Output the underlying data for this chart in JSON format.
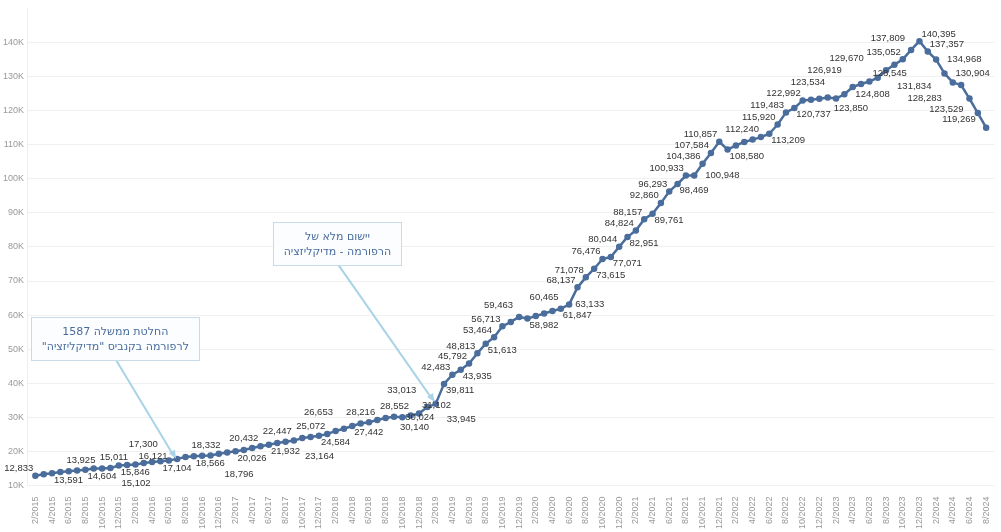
{
  "chart_data": {
    "type": "line",
    "x": [
      "2015-02",
      "2015-03",
      "2015-04",
      "2015-05",
      "2015-06",
      "2015-07",
      "2015-08",
      "2015-09",
      "2015-10",
      "2015-11",
      "2015-12",
      "2016-01",
      "2016-02",
      "2016-03",
      "2016-04",
      "2016-05",
      "2016-06",
      "2016-07",
      "2016-08",
      "2016-09",
      "2016-10",
      "2016-11",
      "2016-12",
      "2017-01",
      "2017-02",
      "2017-03",
      "2017-04",
      "2017-05",
      "2017-06",
      "2017-07",
      "2017-08",
      "2017-09",
      "2017-10",
      "2017-11",
      "2017-12",
      "2018-01",
      "2018-02",
      "2018-03",
      "2018-04",
      "2018-05",
      "2018-06",
      "2018-07",
      "2018-08",
      "2018-09",
      "2018-10",
      "2018-11",
      "2018-12",
      "2019-01",
      "2019-02",
      "2019-03",
      "2019-04",
      "2019-05",
      "2019-06",
      "2019-07",
      "2019-08",
      "2019-09",
      "2019-10",
      "2019-11",
      "2019-12",
      "2020-01",
      "2020-02",
      "2020-03",
      "2020-04",
      "2020-05",
      "2020-06",
      "2020-07",
      "2020-08",
      "2020-09",
      "2020-10",
      "2020-11",
      "2020-12",
      "2021-01",
      "2021-02",
      "2021-03",
      "2021-04",
      "2021-05",
      "2021-06",
      "2021-07",
      "2021-08",
      "2021-09",
      "2021-10",
      "2021-11",
      "2021-12",
      "2022-01",
      "2022-02",
      "2022-03",
      "2022-04",
      "2022-05",
      "2022-06",
      "2022-07",
      "2022-08",
      "2022-09",
      "2022-10",
      "2022-11",
      "2022-12",
      "2023-01",
      "2023-02",
      "2023-03",
      "2023-04",
      "2023-05",
      "2023-06",
      "2023-07",
      "2023-08",
      "2023-09",
      "2023-10",
      "2023-11",
      "2023-12",
      "2024-01",
      "2024-02",
      "2024-03",
      "2024-04",
      "2024-05",
      "2024-06",
      "2024-07",
      "2024-08"
    ],
    "series": [
      {
        "color": "#4a6d9c",
        "values": [
          12833,
          13300,
          13591,
          13925,
          14200,
          14400,
          14604,
          15011,
          15000,
          15102,
          15846,
          16000,
          16121,
          16600,
          16900,
          17104,
          17300,
          17800,
          18332,
          18566,
          18700,
          18796,
          19300,
          19700,
          20026,
          20432,
          21000,
          21500,
          21932,
          22447,
          22800,
          23164,
          23900,
          24200,
          24584,
          25072,
          26000,
          26653,
          27442,
          28216,
          28552,
          29200,
          29800,
          30140,
          30024,
          30500,
          31102,
          33013,
          33945,
          39811,
          42483,
          43935,
          45792,
          48813,
          51613,
          53464,
          56713,
          58000,
          59463,
          58982,
          59700,
          60465,
          61200,
          61847,
          63133,
          68137,
          71078,
          73615,
          76476,
          77071,
          80044,
          82951,
          84824,
          88157,
          89761,
          92860,
          96293,
          98469,
          100933,
          100948,
          104386,
          107584,
          110857,
          108580,
          109800,
          110800,
          111500,
          112240,
          113209,
          115920,
          119483,
          120737,
          122992,
          123200,
          123500,
          123850,
          123534,
          124808,
          126919,
          127800,
          128545,
          129670,
          131834,
          133500,
          135052,
          137809,
          140395,
          137357,
          134968,
          130904,
          128283,
          127500,
          123529,
          119269,
          115000
        ],
        "value_labels": [
          "12,833",
          null,
          "13,591",
          "13,925",
          null,
          null,
          "14,604",
          "15,011",
          null,
          "15,102",
          "15,846",
          null,
          "16,121",
          null,
          null,
          "17,104",
          "17,300",
          null,
          "18,332",
          "18,566",
          null,
          "18,796",
          null,
          null,
          "20,026",
          "20,432",
          null,
          null,
          "21,932",
          "22,447",
          null,
          "23,164",
          null,
          null,
          "24,584",
          "25,072",
          null,
          "26,653",
          "27,442",
          "28,216",
          "28,552",
          null,
          null,
          "30,140",
          "30,024",
          null,
          "31,102",
          "33,013",
          "33,945",
          "39,811",
          "42,483",
          "43,935",
          "45,792",
          "48,813",
          "51,613",
          "53,464",
          "56,713",
          null,
          "59,463",
          "58,982",
          null,
          "60,465",
          null,
          "61,847",
          "63,133",
          "68,137",
          "71,078",
          "73,615",
          "76,476",
          "77,071",
          "80,044",
          "82,951",
          "84,824",
          "88,157",
          "89,761",
          "92,860",
          "96,293",
          "98,469",
          "100,933",
          "100,948",
          "104,386",
          "107,584",
          "110,857",
          "108,580",
          null,
          null,
          null,
          "112,240",
          "113,209",
          "115,920",
          "119,483",
          "120,737",
          "122,992",
          null,
          null,
          "123,850",
          "123,534",
          "124,808",
          "126,919",
          null,
          "128,545",
          "129,670",
          "131,834",
          null,
          "135,052",
          "137,809",
          "140,395",
          "137,357",
          "134,968",
          "130,904",
          "128,283",
          null,
          "123,529",
          "119,269",
          null
        ]
      }
    ],
    "xlim": [
      "2015-01",
      "2024-09"
    ],
    "xticks": [
      {
        "value": "2015-02",
        "label": "2/2015"
      },
      {
        "value": "2015-04",
        "label": "4/2015"
      },
      {
        "value": "2015-06",
        "label": "6/2015"
      },
      {
        "value": "2015-08",
        "label": "8/2015"
      },
      {
        "value": "2015-10",
        "label": "10/2015"
      },
      {
        "value": "2015-12",
        "label": "12/2015"
      },
      {
        "value": "2016-02",
        "label": "2/2016"
      },
      {
        "value": "2016-04",
        "label": "4/2016"
      },
      {
        "value": "2016-06",
        "label": "6/2016"
      },
      {
        "value": "2016-08",
        "label": "8/2016"
      },
      {
        "value": "2016-10",
        "label": "10/2016"
      },
      {
        "value": "2016-12",
        "label": "12/2016"
      },
      {
        "value": "2017-02",
        "label": "2/2017"
      },
      {
        "value": "2017-04",
        "label": "4/2017"
      },
      {
        "value": "2017-06",
        "label": "6/2017"
      },
      {
        "value": "2017-08",
        "label": "8/2017"
      },
      {
        "value": "2017-10",
        "label": "10/2017"
      },
      {
        "value": "2017-12",
        "label": "12/2017"
      },
      {
        "value": "2018-02",
        "label": "2/2018"
      },
      {
        "value": "2018-04",
        "label": "4/2018"
      },
      {
        "value": "2018-06",
        "label": "6/2018"
      },
      {
        "value": "2018-08",
        "label": "8/2018"
      },
      {
        "value": "2018-10",
        "label": "10/2018"
      },
      {
        "value": "2018-12",
        "label": "12/2018"
      },
      {
        "value": "2019-02",
        "label": "2/2019"
      },
      {
        "value": "2019-04",
        "label": "4/2019"
      },
      {
        "value": "2019-06",
        "label": "6/2019"
      },
      {
        "value": "2019-08",
        "label": "8/2019"
      },
      {
        "value": "2019-10",
        "label": "10/2019"
      },
      {
        "value": "2019-12",
        "label": "12/2019"
      },
      {
        "value": "2020-02",
        "label": "2/2020"
      },
      {
        "value": "2020-04",
        "label": "4/2020"
      },
      {
        "value": "2020-06",
        "label": "6/2020"
      },
      {
        "value": "2020-08",
        "label": "8/2020"
      },
      {
        "value": "2020-10",
        "label": "10/2020"
      },
      {
        "value": "2020-12",
        "label": "12/2020"
      },
      {
        "value": "2021-02",
        "label": "2/2021"
      },
      {
        "value": "2021-04",
        "label": "4/2021"
      },
      {
        "value": "2021-06",
        "label": "6/2021"
      },
      {
        "value": "2021-08",
        "label": "8/2021"
      },
      {
        "value": "2021-10",
        "label": "10/2021"
      },
      {
        "value": "2021-12",
        "label": "12/2021"
      },
      {
        "value": "2022-02",
        "label": "2/2022"
      },
      {
        "value": "2022-04",
        "label": "4/2022"
      },
      {
        "value": "2022-06",
        "label": "6/2022"
      },
      {
        "value": "2022-08",
        "label": "8/2022"
      },
      {
        "value": "2022-10",
        "label": "10/2022"
      },
      {
        "value": "2022-12",
        "label": "12/2022"
      },
      {
        "value": "2023-02",
        "label": "2/2023"
      },
      {
        "value": "2023-04",
        "label": "4/2023"
      },
      {
        "value": "2023-06",
        "label": "6/2023"
      },
      {
        "value": "2023-08",
        "label": "8/2023"
      },
      {
        "value": "2023-10",
        "label": "10/2023"
      },
      {
        "value": "2023-12",
        "label": "12/2023"
      },
      {
        "value": "2024-02",
        "label": "2/2024"
      },
      {
        "value": "2024-04",
        "label": "4/2024"
      },
      {
        "value": "2024-06",
        "label": "6/2024"
      },
      {
        "value": "2024-08",
        "label": "8/2024"
      }
    ],
    "ylim": [
      10000,
      150000
    ],
    "yticks": [
      {
        "value": 10000,
        "label": "10K"
      },
      {
        "value": 20000,
        "label": "20K"
      },
      {
        "value": 30000,
        "label": "30K"
      },
      {
        "value": 40000,
        "label": "40K"
      },
      {
        "value": 50000,
        "label": "50K"
      },
      {
        "value": 60000,
        "label": "60K"
      },
      {
        "value": 70000,
        "label": "70K"
      },
      {
        "value": 80000,
        "label": "80K"
      },
      {
        "value": 90000,
        "label": "90K"
      },
      {
        "value": 100000,
        "label": "100K"
      },
      {
        "value": 110000,
        "label": "110K"
      },
      {
        "value": 120000,
        "label": "120K"
      },
      {
        "value": 130000,
        "label": "130K"
      },
      {
        "value": 140000,
        "label": "140K"
      }
    ],
    "grid": "y",
    "marker": "circle",
    "line_style": "solid",
    "annotations": [
      {
        "text": "החלטת ממשלה 1587\nלרפורמה  בקנביס \"מדיקליזציה\"",
        "x": "2016-07",
        "y": 17300
      },
      {
        "text": "יישום מלא של\nהרפורמה - מדיקליזציה",
        "x": "2019-02",
        "y": 33945
      }
    ]
  }
}
